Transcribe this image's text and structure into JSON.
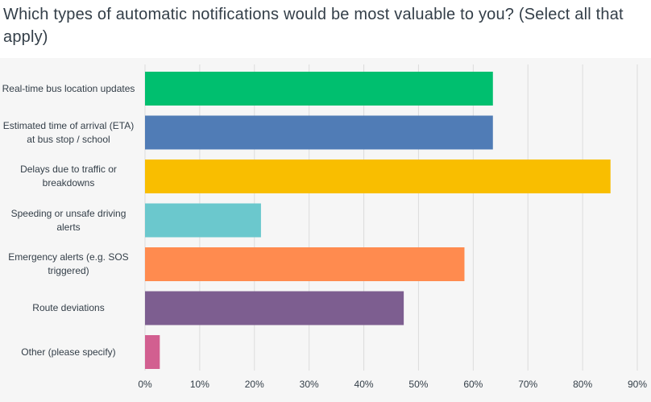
{
  "title": "Which types of automatic notifications would be most valuable to you? (Select all that apply)",
  "chart_data": {
    "type": "bar",
    "orientation": "horizontal",
    "title": "Which types of automatic notifications would be most valuable to you? (Select all that apply)",
    "categories": [
      "Real-time bus location updates",
      "Estimated time of arrival (ETA) at bus stop / school",
      "Delays due to traffic or breakdowns",
      "Speeding or unsafe driving alerts",
      "Emergency alerts (e.g. SOS triggered)",
      "Route deviations",
      "Other (please specify)"
    ],
    "values": [
      63.6,
      63.6,
      85.1,
      21.2,
      58.4,
      47.3,
      2.7
    ],
    "colors": [
      "#00bf6f",
      "#507cb6",
      "#f9be00",
      "#6bc8cd",
      "#ff8b4f",
      "#7d5e90",
      "#d25f90"
    ],
    "xlim": [
      0,
      90
    ],
    "xticks": [
      "0%",
      "10%",
      "20%",
      "30%",
      "40%",
      "50%",
      "60%",
      "70%",
      "80%",
      "90%"
    ],
    "grid": true
  }
}
